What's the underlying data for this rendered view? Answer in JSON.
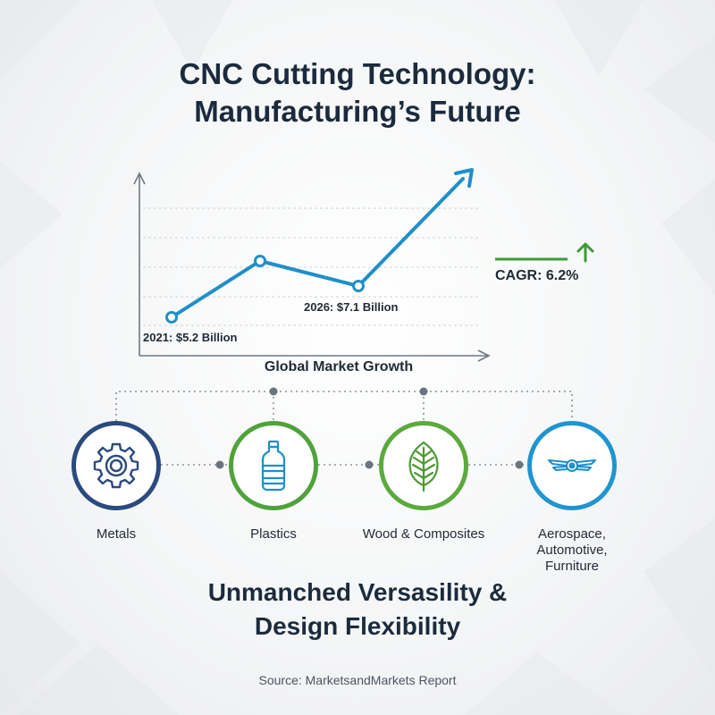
{
  "title": {
    "line1": "CNC Cutting Technology:",
    "line2": "Manufacturing’s Future"
  },
  "chart_data": {
    "type": "line",
    "title": "Global Market Growth",
    "points": [
      {
        "label": "2021: $5.2 Billion"
      },
      {
        "label": ""
      },
      {
        "label": "2026: $7.1 Billion"
      }
    ],
    "trend": "up",
    "cagr_label": "CAGR: 6.2%",
    "grid": true
  },
  "categories": [
    {
      "label": "Metals",
      "icon": "gear-icon",
      "color": "#2b4a7e"
    },
    {
      "label": "Plastics",
      "icon": "bottle-icon",
      "color": "#4fa23a"
    },
    {
      "label": "Wood & Composites",
      "icon": "leaf-icon",
      "color": "#5aaa3c"
    },
    {
      "label": "Aerospace,\nAutomotive,\nFurniture",
      "icon": "wings-icon",
      "color": "#1f95d0"
    }
  ],
  "subtitle": {
    "line1": "Unmanched Versasility &",
    "line2": "Design Flexibility"
  },
  "source": "Source: MarketsandMarkets Report",
  "colors": {
    "line": "#1f8fc9",
    "cagr": "#3c9a3a",
    "text": "#1b2b3d"
  }
}
